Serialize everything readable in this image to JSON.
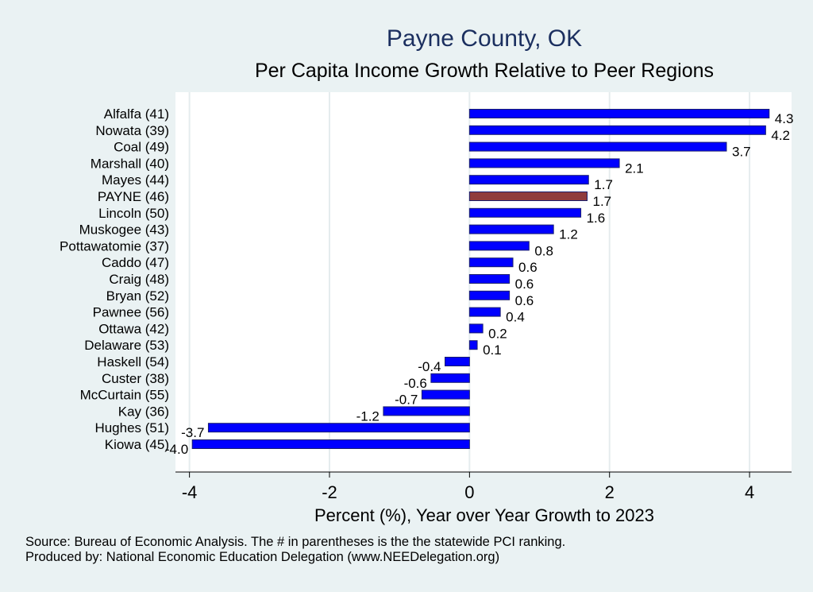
{
  "chart_data": {
    "type": "bar",
    "orientation": "horizontal",
    "title": "Payne County, OK",
    "subtitle": "Per Capita Income Growth Relative to Peer Regions",
    "xlabel": "Percent (%), Year over Year Growth to 2023",
    "ylabel": "",
    "xlim": [
      -4.2,
      4.6
    ],
    "xticks": [
      -4,
      -2,
      0,
      2,
      4
    ],
    "xtick_labels": [
      "-4",
      "-2",
      "0",
      "2",
      "4"
    ],
    "grid": true,
    "categories": [
      "Alfalfa (41)",
      "Nowata (39)",
      "Coal (49)",
      "Marshall (40)",
      "Mayes (44)",
      "PAYNE (46)",
      "Lincoln (50)",
      "Muskogee (43)",
      "Pottawatomie (37)",
      "Caddo (47)",
      "Craig (48)",
      "Bryan (52)",
      "Pawnee (56)",
      "Ottawa (42)",
      "Delaware (53)",
      "Haskell (54)",
      "Custer (38)",
      "McCurtain (55)",
      "Kay (36)",
      "Hughes (51)",
      "Kiowa (45)"
    ],
    "values": [
      4.28,
      4.23,
      3.67,
      2.14,
      1.7,
      1.68,
      1.59,
      1.2,
      0.85,
      0.62,
      0.57,
      0.57,
      0.44,
      0.19,
      0.11,
      -0.35,
      -0.55,
      -0.68,
      -1.23,
      -3.73,
      -3.96
    ],
    "value_labels": [
      "4.3",
      "4.2",
      "3.7",
      "2.1",
      "1.7",
      "1.7",
      "1.6",
      "1.2",
      "0.8",
      "0.6",
      "0.6",
      "0.6",
      "0.4",
      "0.2",
      "0.1",
      "-0.4",
      "-0.6",
      "-0.7",
      "-1.2",
      "-3.7",
      "-4.0"
    ],
    "highlight": "PAYNE (46)",
    "colors": {
      "bar": "#0000ff",
      "bar_outline": "#1a1f6e",
      "highlight": "#903c3c",
      "plot_bg": "#ffffff",
      "page_bg": "#eaf2f3",
      "title": "#1b2f5f"
    }
  },
  "footnotes": {
    "source": "Source: Bureau of Economic Analysis. The # in parentheses is the the statewide PCI ranking.",
    "producer": "Produced by: National Economic Education Delegation (www.NEEDelegation.org)"
  }
}
